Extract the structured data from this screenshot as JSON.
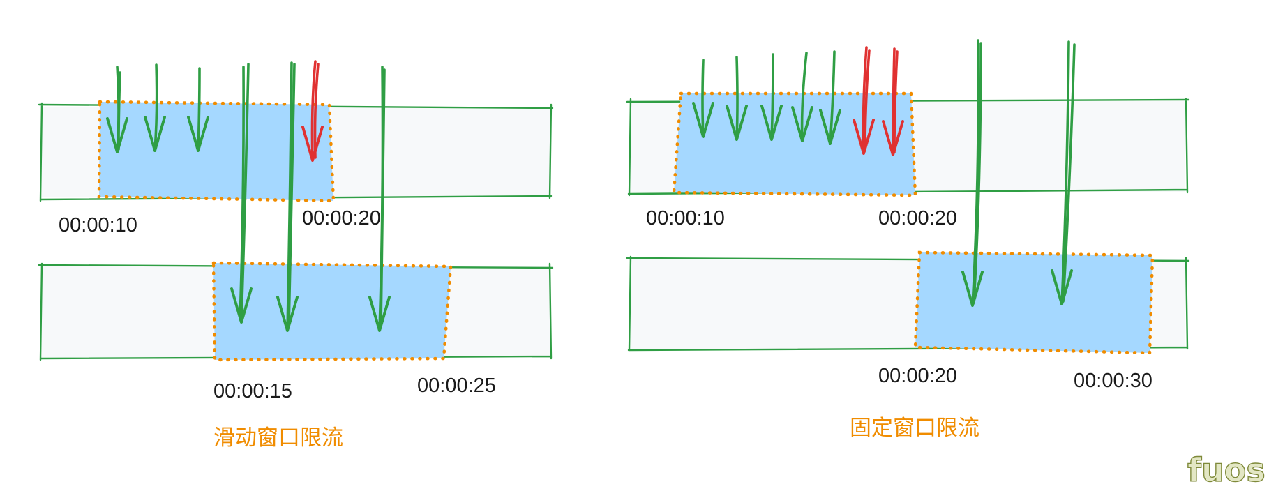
{
  "colors": {
    "track_fill": "#f7f9fa",
    "track_stroke": "#2f9e44",
    "window_fill": "#a5d8ff",
    "window_border": "#f08c00",
    "arrow_allowed": "#2f9e44",
    "arrow_rejected": "#e03131",
    "caption": "#f08c00"
  },
  "sliding": {
    "caption": "滑动窗口限流",
    "window1": {
      "start_label": "00:00:10",
      "end_label": "00:00:20"
    },
    "window2": {
      "start_label": "00:00:15",
      "end_label": "00:00:25"
    },
    "allowed_in_window1": 5,
    "rejected_in_window1": 1,
    "passing_to_window2": 3
  },
  "fixed": {
    "caption": "固定窗口限流",
    "window1": {
      "start_label": "00:00:10",
      "end_label": "00:00:20"
    },
    "window2": {
      "start_label": "00:00:20",
      "end_label": "00:00:30"
    },
    "allowed_in_window1": 5,
    "rejected_in_window1": 2,
    "allowed_in_window2": 2
  },
  "watermark": "fuos"
}
